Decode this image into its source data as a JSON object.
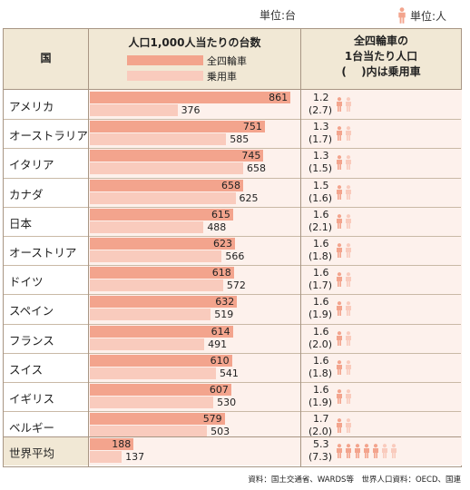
{
  "units": {
    "bars": "単位:台",
    "people": "単位:人"
  },
  "header": {
    "country": "国",
    "chart_title": "人口1,000人当たりの台数",
    "legend": [
      "全四輪車",
      "乗用車"
    ],
    "people_title": [
      "全四輪車の",
      "1台当たり人口",
      "(　 )内は乗用車"
    ]
  },
  "colors": {
    "all_vehicles": "#f3a48d",
    "passenger": "#f9cbbd",
    "header_bg": "#f1e8d5",
    "row_bg": "#fdf1ec",
    "icon_dark": "#f3a48d",
    "icon_light": "#f9cbbd"
  },
  "icon_name": "person-icon",
  "source": "資料：国土交通省、WARDS等　世界人口資料：OECD、国連",
  "chart_data": {
    "type": "bar",
    "title": "人口1,000人当たりの台数",
    "categories": [
      "アメリカ",
      "オーストラリア",
      "イタリア",
      "カナダ",
      "日本",
      "オーストリア",
      "ドイツ",
      "スペイン",
      "フランス",
      "スイス",
      "イギリス",
      "ベルギー",
      "世界平均"
    ],
    "series": [
      {
        "name": "全四輪車",
        "values": [
          861,
          751,
          745,
          658,
          615,
          623,
          618,
          632,
          614,
          610,
          607,
          579,
          188
        ]
      },
      {
        "name": "乗用車",
        "values": [
          376,
          585,
          658,
          625,
          488,
          566,
          572,
          519,
          491,
          541,
          530,
          503,
          137
        ]
      }
    ],
    "people_per_vehicle": {
      "all": [
        "1.2",
        "1.3",
        "1.3",
        "1.5",
        "1.6",
        "1.6",
        "1.6",
        "1.6",
        "1.6",
        "1.6",
        "1.6",
        "1.7",
        "5.3"
      ],
      "passenger": [
        "(2.7)",
        "(1.7)",
        "(1.5)",
        "(1.6)",
        "(2.1)",
        "(1.8)",
        "(1.7)",
        "(1.9)",
        "(2.0)",
        "(1.8)",
        "(1.9)",
        "(2.0)",
        "(7.3)"
      ]
    },
    "icons": [
      {
        "dark": 1,
        "light": 1
      },
      {
        "dark": 1,
        "light": 1
      },
      {
        "dark": 1,
        "light": 1
      },
      {
        "dark": 1,
        "light": 1
      },
      {
        "dark": 1,
        "light": 1
      },
      {
        "dark": 1,
        "light": 1
      },
      {
        "dark": 1,
        "light": 1
      },
      {
        "dark": 1,
        "light": 1
      },
      {
        "dark": 1,
        "light": 1
      },
      {
        "dark": 1,
        "light": 1
      },
      {
        "dark": 1,
        "light": 1
      },
      {
        "dark": 1,
        "light": 1
      },
      {
        "dark": 5,
        "light": 2
      }
    ],
    "xlim": [
      0,
      900
    ]
  }
}
